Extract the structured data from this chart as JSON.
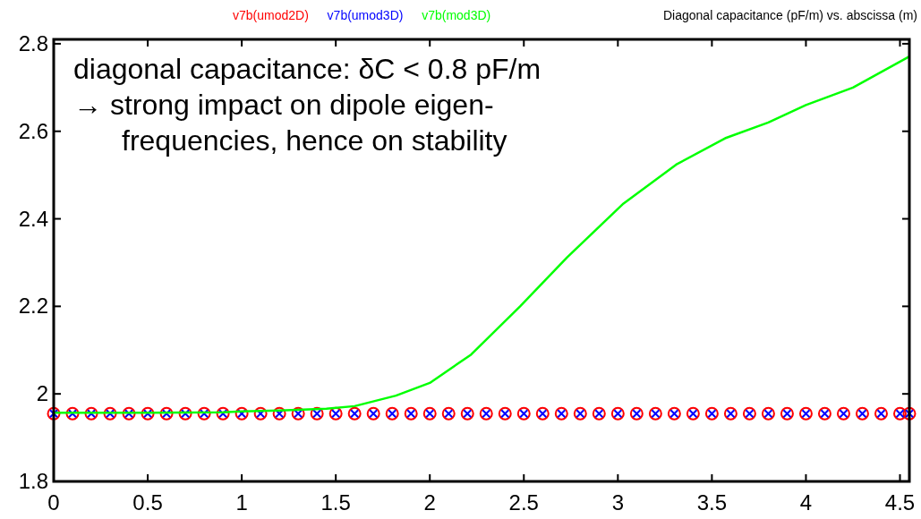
{
  "chart_data": {
    "type": "line",
    "title": "Diagonal capacitance (pF/m)  vs.  abscissa (m)",
    "annotations": [
      "diagonal capacitance:  δC < 0.8 pF/m\n→ strong impact on dipole eigen-\nfrequencies, hence on stability"
    ],
    "xlim": [
      0,
      4.55
    ],
    "xticks": [
      0,
      0.5,
      1,
      1.5,
      2,
      2.5,
      3,
      3.5,
      4,
      4.5
    ],
    "ylim": [
      1.8,
      2.81
    ],
    "yticks": [
      1.8,
      2,
      2.2,
      2.4,
      2.6,
      2.8
    ],
    "grid": false,
    "legend": "top",
    "series": [
      {
        "name": "v7b(umod2D)",
        "color": "#ff0000",
        "type": "scatter",
        "marker": "circle",
        "x": [
          0,
          0.1,
          0.2,
          0.3,
          0.4,
          0.5,
          0.6,
          0.7,
          0.8,
          0.9,
          1,
          1.1,
          1.2,
          1.3,
          1.4,
          1.5,
          1.6,
          1.7,
          1.8,
          1.9,
          2,
          2.1,
          2.2,
          2.3,
          2.4,
          2.5,
          2.6,
          2.7,
          2.8,
          2.9,
          3,
          3.1,
          3.2,
          3.3,
          3.4,
          3.5,
          3.6,
          3.7,
          3.8,
          3.9,
          4,
          4.1,
          4.2,
          4.3,
          4.4,
          4.5,
          4.55
        ],
        "values": [
          1.955,
          1.955,
          1.955,
          1.955,
          1.955,
          1.955,
          1.955,
          1.955,
          1.955,
          1.955,
          1.955,
          1.955,
          1.955,
          1.955,
          1.955,
          1.955,
          1.955,
          1.955,
          1.955,
          1.955,
          1.955,
          1.955,
          1.955,
          1.955,
          1.955,
          1.955,
          1.955,
          1.955,
          1.955,
          1.955,
          1.955,
          1.955,
          1.955,
          1.955,
          1.955,
          1.955,
          1.955,
          1.955,
          1.955,
          1.955,
          1.955,
          1.955,
          1.955,
          1.955,
          1.955,
          1.955,
          1.955
        ]
      },
      {
        "name": "v7b(umod3D)",
        "color": "#0000ff",
        "type": "scatter",
        "marker": "cross",
        "x": [
          0,
          0.1,
          0.2,
          0.3,
          0.4,
          0.5,
          0.6,
          0.7,
          0.8,
          0.9,
          1,
          1.1,
          1.2,
          1.3,
          1.4,
          1.5,
          1.6,
          1.7,
          1.8,
          1.9,
          2,
          2.1,
          2.2,
          2.3,
          2.4,
          2.5,
          2.6,
          2.7,
          2.8,
          2.9,
          3,
          3.1,
          3.2,
          3.3,
          3.4,
          3.5,
          3.6,
          3.7,
          3.8,
          3.9,
          4,
          4.1,
          4.2,
          4.3,
          4.4,
          4.5,
          4.55
        ],
        "values": [
          1.955,
          1.955,
          1.955,
          1.955,
          1.955,
          1.955,
          1.955,
          1.955,
          1.955,
          1.955,
          1.955,
          1.955,
          1.955,
          1.955,
          1.955,
          1.955,
          1.955,
          1.955,
          1.955,
          1.955,
          1.955,
          1.955,
          1.955,
          1.955,
          1.955,
          1.955,
          1.955,
          1.955,
          1.955,
          1.955,
          1.955,
          1.955,
          1.955,
          1.955,
          1.955,
          1.955,
          1.955,
          1.955,
          1.955,
          1.955,
          1.955,
          1.955,
          1.955,
          1.955,
          1.955,
          1.955,
          1.955
        ]
      },
      {
        "name": "v7b(mod3D)",
        "color": "#00ff00",
        "x": [
          0,
          0.5,
          0.9,
          1.0,
          1.2,
          1.45,
          1.6,
          1.82,
          2.0,
          2.22,
          2.48,
          2.73,
          3.03,
          3.31,
          3.57,
          3.8,
          4.0,
          4.25,
          4.55
        ],
        "values": [
          1.957,
          1.957,
          1.958,
          1.96,
          1.962,
          1.966,
          1.972,
          1.996,
          2.025,
          2.09,
          2.2,
          2.312,
          2.435,
          2.524,
          2.584,
          2.62,
          2.66,
          2.7,
          2.771
        ]
      }
    ]
  }
}
